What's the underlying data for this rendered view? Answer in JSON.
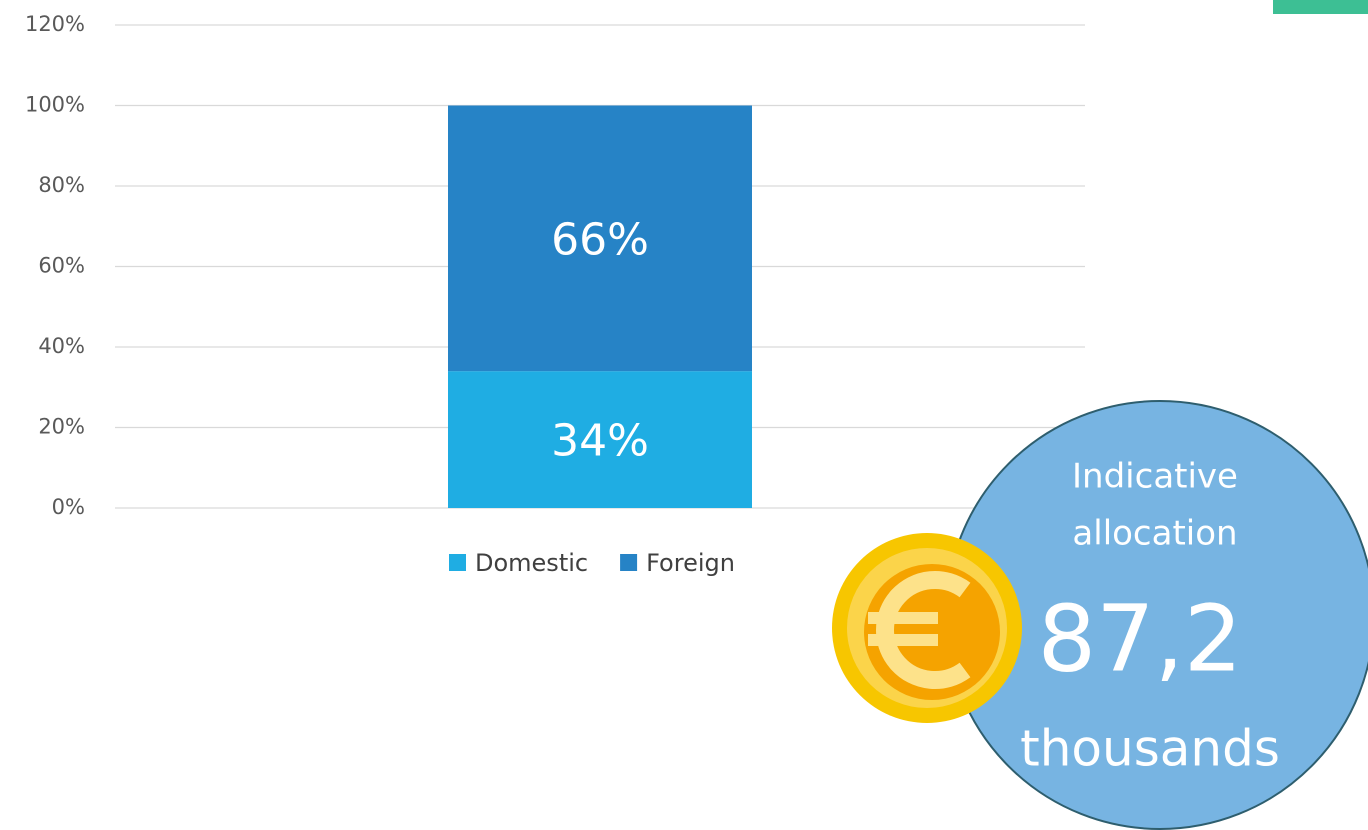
{
  "chart_data": {
    "type": "bar",
    "stacked": true,
    "categories": [
      null
    ],
    "series": [
      {
        "name": "Domestic",
        "color": "#1fade3",
        "values": [
          34
        ],
        "value_labels": [
          "34%"
        ]
      },
      {
        "name": "Foreign",
        "color": "#2683c6",
        "values": [
          66
        ],
        "value_labels": [
          "66%"
        ]
      }
    ],
    "ylim": [
      0,
      120
    ],
    "yticks": [
      {
        "value": 0,
        "label": "0%"
      },
      {
        "value": 20,
        "label": "20%"
      },
      {
        "value": 40,
        "label": "40%"
      },
      {
        "value": 60,
        "label": "60%"
      },
      {
        "value": 80,
        "label": "80%"
      },
      {
        "value": 100,
        "label": "100%"
      },
      {
        "value": 120,
        "label": "120%"
      }
    ],
    "grid": true,
    "legend": "bottom",
    "callout": {
      "label": [
        "Indicative",
        "allocation"
      ],
      "value": "87,2",
      "unit": "thousands"
    }
  }
}
